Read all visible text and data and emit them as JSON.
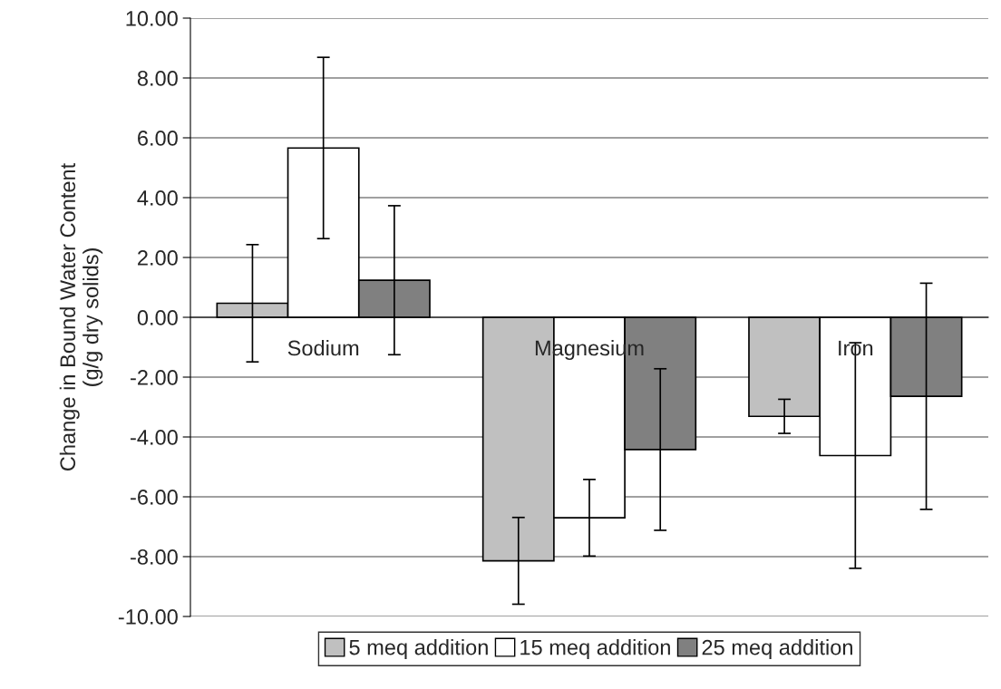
{
  "chart_data": {
    "type": "bar",
    "ylabel": "Change in Bound Water Content\n(g/g dry solids)",
    "categories": [
      "Sodium",
      "Magnesium",
      "Iron"
    ],
    "series": [
      {
        "name": "5 meq addition",
        "color": "#c0c0c0",
        "values": [
          0.47,
          -8.14,
          -3.31
        ],
        "errors": [
          1.96,
          1.45,
          0.57
        ]
      },
      {
        "name": "15 meq addition",
        "color": "#ffffff",
        "values": [
          5.66,
          -6.7,
          -4.62
        ],
        "errors": [
          3.03,
          1.28,
          3.77
        ]
      },
      {
        "name": "25 meq addition",
        "color": "#808080",
        "values": [
          1.24,
          -4.42,
          -2.64
        ],
        "errors": [
          2.49,
          2.7,
          3.78
        ]
      }
    ],
    "ylim": [
      -10,
      10
    ],
    "yticks": [
      {
        "value": -10,
        "label": "-10.00"
      },
      {
        "value": -8,
        "label": "-8.00"
      },
      {
        "value": -6,
        "label": "-6.00"
      },
      {
        "value": -4,
        "label": "-4.00"
      },
      {
        "value": -2,
        "label": "-2.00"
      },
      {
        "value": 0,
        "label": "0.00"
      },
      {
        "value": 2,
        "label": "2.00"
      },
      {
        "value": 4,
        "label": "4.00"
      },
      {
        "value": 6,
        "label": "6.00"
      },
      {
        "value": 8,
        "label": "8.00"
      },
      {
        "value": 10,
        "label": "10.00"
      }
    ],
    "grid": "y",
    "legend": "bottom"
  }
}
